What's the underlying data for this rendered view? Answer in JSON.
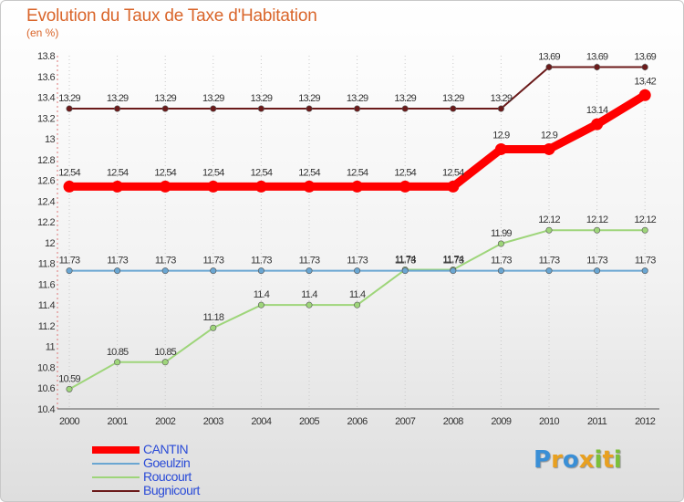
{
  "title": "Evolution du Taux de Taxe d'Habitation",
  "subtitle": "(en %)",
  "brand": {
    "letters": [
      "P",
      "r",
      "o",
      "x",
      "i",
      "t",
      "i"
    ],
    "colors": [
      "#3a8fd6",
      "#e8a020",
      "#3a8fd6",
      "#e8a020",
      "#7bbf3a",
      "#e8a020",
      "#7bbf3a"
    ]
  },
  "chart_data": {
    "type": "line",
    "title": "Evolution du Taux de Taxe d'Habitation",
    "ylabel": "(en %)",
    "xlabel": "",
    "x": [
      "2000",
      "2001",
      "2002",
      "2003",
      "2004",
      "2005",
      "2006",
      "2007",
      "2008",
      "2009",
      "2010",
      "2011",
      "2012"
    ],
    "ylim": [
      10.4,
      13.8
    ],
    "yticks": [
      "10.4",
      "10.6",
      "10.8",
      "11",
      "11.2",
      "11.4",
      "11.6",
      "11.8",
      "12",
      "12.2",
      "12.4",
      "12.6",
      "12.8",
      "13",
      "13.2",
      "13.4",
      "13.6",
      "13.8"
    ],
    "grid": "vertical dotted",
    "legend_position": "bottom-left",
    "series": [
      {
        "name": "Bugnicourt",
        "color": "#6b1a1a",
        "line_width": "thin",
        "values": [
          13.29,
          13.29,
          13.29,
          13.29,
          13.29,
          13.29,
          13.29,
          13.29,
          13.29,
          13.29,
          13.69,
          13.69,
          13.69
        ],
        "labels": [
          "13.29",
          "13.29",
          "13.29",
          "13.29",
          "13.29",
          "13.29",
          "13.29",
          "13.29",
          "13.29",
          "13.29",
          "13.69",
          "13.69",
          "13.69"
        ]
      },
      {
        "name": "Roucourt",
        "color": "#9ed57a",
        "line_width": "thin",
        "values": [
          10.59,
          10.85,
          10.85,
          11.18,
          11.4,
          11.4,
          11.4,
          11.74,
          11.74,
          11.99,
          12.12,
          12.12,
          12.12
        ],
        "labels": [
          "10.59",
          "10.85",
          "10.85",
          "11.18",
          "11.4",
          "11.4",
          "11.4",
          "11.74",
          "11.74",
          "11.99",
          "12.12",
          "12.12",
          "12.12"
        ]
      },
      {
        "name": "Goeulzin",
        "color": "#6aa6d2",
        "line_width": "thin",
        "values": [
          11.73,
          11.73,
          11.73,
          11.73,
          11.73,
          11.73,
          11.73,
          11.73,
          11.73,
          11.73,
          11.73,
          11.73,
          11.73
        ],
        "labels": [
          "11.73",
          "11.73",
          "11.73",
          "11.73",
          "11.73",
          "11.73",
          "11.73",
          "11.73",
          "11.73",
          "11.73",
          "11.73",
          "11.73",
          "11.73"
        ]
      },
      {
        "name": "CANTIN",
        "color": "#ff0000",
        "line_width": "thick",
        "values": [
          12.54,
          12.54,
          12.54,
          12.54,
          12.54,
          12.54,
          12.54,
          12.54,
          12.54,
          12.9,
          12.9,
          13.14,
          13.42
        ],
        "labels": [
          "12.54",
          "12.54",
          "12.54",
          "12.54",
          "12.54",
          "12.54",
          "12.54",
          "12.54",
          "12.54",
          "12.9",
          "12.9",
          "13.14",
          "13.42"
        ]
      }
    ],
    "legend_order": [
      "CANTIN",
      "Goeulzin",
      "Roucourt",
      "Bugnicourt"
    ]
  }
}
